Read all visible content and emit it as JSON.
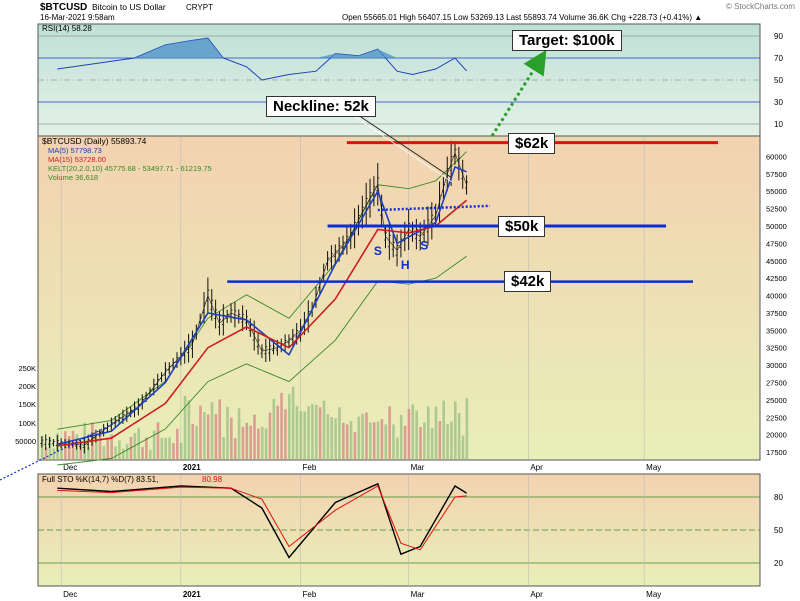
{
  "header": {
    "symbol": "$BTCUSD",
    "name": "Bitcoin to US Dollar",
    "exchange": "CRYPT",
    "date": "16-Mar-2021 9:58am",
    "quote": "Open 55665.01  High 56407.15  Low 53269.13  Last 55893.74  Volume 36.6K  Chg +228.73 (+0.41%) ▲",
    "watermark": "© StockCharts.com"
  },
  "colors": {
    "rsi_bg": "#cfe8de",
    "rsi_fill": "#4a8fc7",
    "rsi_line": "#1f3fbf",
    "main_bg_top": "#f3d2b0",
    "main_bg_bottom": "#e8efb8",
    "ma5": "#1f3fbf",
    "ma15": "#cc1f1f",
    "kelt": "#3a8a2a",
    "volume": "#9fbf88",
    "volume_down": "#d88a8a",
    "level_red": "#e01010",
    "level_blue": "#0a2fd0",
    "sto_k": "#000000",
    "sto_d": "#e01010",
    "target_arrow": "#2aa02a"
  },
  "rsi_panel": {
    "label": "RSI(14) 58.28",
    "ticks": [
      "90",
      "70",
      "50",
      "30",
      "10"
    ]
  },
  "main_panel": {
    "legend": [
      "$BTCUSD (Daily) 55893.74",
      "MA(5) 57798.73",
      "MA(15) 53728.00",
      "KELT(20,2.0,10) 45775.68 - 53497.71 - 61219.75",
      "Volume 36,618"
    ],
    "price_ticks": [
      "60000",
      "57500",
      "55000",
      "52500",
      "50000",
      "47500",
      "45000",
      "42500",
      "40000",
      "37500",
      "35000",
      "32500",
      "30000",
      "27500",
      "25000",
      "22500",
      "20000",
      "17500"
    ],
    "volume_ticks": [
      "250K",
      "200K",
      "150K",
      "100K",
      "50000"
    ],
    "month_labels": [
      "Dec",
      "2021",
      "Feb",
      "Mar",
      "Apr",
      "May"
    ],
    "annotations": {
      "target": "Target: $100k",
      "neckline": "Neckline: 52k",
      "level_62": "$62k",
      "level_50": "$50k",
      "level_42": "$42k",
      "s_left": "S",
      "head": "H",
      "s_right": "S"
    }
  },
  "sto_panel": {
    "label": "Full STO %K(14,7) %D(7) 83.51,",
    "value_d": "80.98",
    "ticks": [
      "80",
      "50",
      "20"
    ],
    "month_labels": [
      "Dec",
      "2021",
      "Feb",
      "Mar",
      "Apr",
      "May"
    ]
  },
  "chart_data": {
    "type": "line",
    "title": "$BTCUSD Bitcoin to US Dollar CRYPT",
    "y_range": [
      17500,
      62000
    ],
    "series": [
      {
        "name": "$BTCUSD (Daily)",
        "x": [
          "2020-11-30",
          "2020-12-07",
          "2020-12-14",
          "2020-12-21",
          "2020-12-28",
          "2021-01-04",
          "2021-01-08",
          "2021-01-11",
          "2021-01-14",
          "2021-01-18",
          "2021-01-22",
          "2021-01-26",
          "2021-01-29",
          "2021-02-01",
          "2021-02-04",
          "2021-02-08",
          "2021-02-10",
          "2021-02-14",
          "2021-02-17",
          "2021-02-21",
          "2021-02-23",
          "2021-02-26",
          "2021-03-01",
          "2021-03-04",
          "2021-03-08",
          "2021-03-11",
          "2021-03-13",
          "2021-03-16"
        ],
        "values": [
          18800,
          18500,
          21500,
          24000,
          29000,
          33000,
          40000,
          36000,
          37500,
          36500,
          32000,
          32500,
          33500,
          35000,
          38000,
          45000,
          46000,
          48500,
          52000,
          56000,
          48500,
          46500,
          49500,
          48500,
          51500,
          57500,
          60500,
          55900
        ]
      },
      {
        "name": "MA(5)",
        "x": [
          "2020-11-30",
          "2020-12-14",
          "2020-12-28",
          "2021-01-08",
          "2021-01-18",
          "2021-01-29",
          "2021-02-10",
          "2021-02-21",
          "2021-02-26",
          "2021-03-08",
          "2021-03-13",
          "2021-03-16"
        ],
        "values": [
          18600,
          20500,
          27500,
          37500,
          36500,
          31500,
          44500,
          55000,
          47500,
          50500,
          58500,
          57800
        ]
      },
      {
        "name": "MA(15)",
        "x": [
          "2020-11-30",
          "2020-12-14",
          "2020-12-28",
          "2021-01-08",
          "2021-01-18",
          "2021-01-29",
          "2021-02-10",
          "2021-02-21",
          "2021-03-01",
          "2021-03-08",
          "2021-03-16"
        ],
        "values": [
          18400,
          19500,
          24500,
          32500,
          35500,
          32500,
          39500,
          49500,
          49000,
          50000,
          53700
        ]
      }
    ],
    "rsi": {
      "last": 58.28,
      "range": [
        0,
        100
      ]
    },
    "stochastic": {
      "x": [
        "2020-11-30",
        "2020-12-14",
        "2021-01-01",
        "2021-01-14",
        "2021-01-22",
        "2021-01-29",
        "2021-02-10",
        "2021-02-21",
        "2021-02-27",
        "2021-03-04",
        "2021-03-13",
        "2021-03-16"
      ],
      "k": [
        88,
        85,
        90,
        88,
        70,
        25,
        75,
        92,
        28,
        35,
        90,
        83.51
      ],
      "d": [
        86,
        84,
        89,
        88,
        78,
        35,
        68,
        90,
        38,
        32,
        80,
        80.98
      ]
    },
    "levels": [
      {
        "label": "$62k",
        "value": 62000
      },
      {
        "label": "$50k",
        "value": 50000
      },
      {
        "label": "$42k",
        "value": 42000
      },
      {
        "label": "Neckline: 52k",
        "value": 52000
      }
    ],
    "xlabel": "",
    "ylabel": ""
  }
}
